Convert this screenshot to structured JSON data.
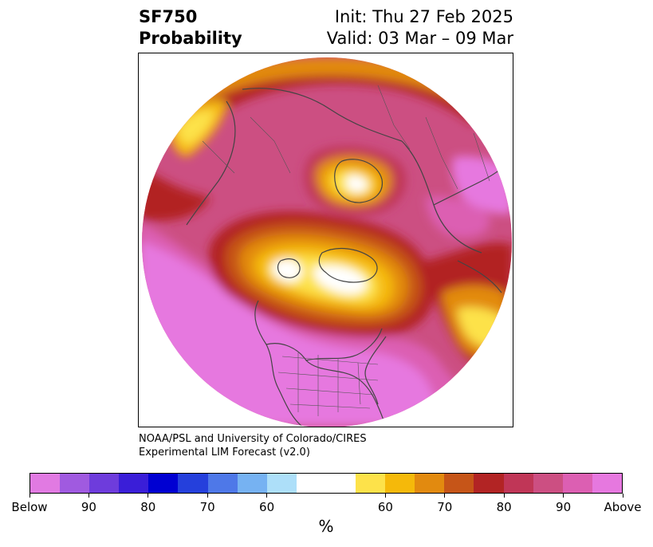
{
  "header": {
    "title_line1": "SF750",
    "title_line2": "Probability",
    "init": "Init: Thu 27 Feb 2025",
    "valid": "Valid: 03 Mar – 09 Mar"
  },
  "credit": {
    "line1": "NOAA/PSL and University of Colorado/CIRES",
    "line2": "Experimental LIM Forecast (v2.0)"
  },
  "colorbar": {
    "colors": [
      "#e17ae2",
      "#a05ae0",
      "#6e3cdc",
      "#3a1ed8",
      "#0000d2",
      "#2540dc",
      "#4e78e8",
      "#76b2f2",
      "#addff9",
      "#ffffff",
      "#ffffff",
      "#fde24a",
      "#f5b90a",
      "#e28a0f",
      "#c65518",
      "#b22424",
      "#c03657",
      "#cc4f82",
      "#dc5fb2",
      "#e678df"
    ],
    "tick_labels": [
      "Below",
      "90",
      "80",
      "70",
      "60",
      "60",
      "70",
      "80",
      "90",
      "Above"
    ],
    "unit": "%"
  },
  "map": {
    "projection": "north-polar-stereographic",
    "region": "Northern Hemisphere",
    "overlays": [
      "coastlines",
      "country-borders",
      "us-state-borders"
    ]
  }
}
